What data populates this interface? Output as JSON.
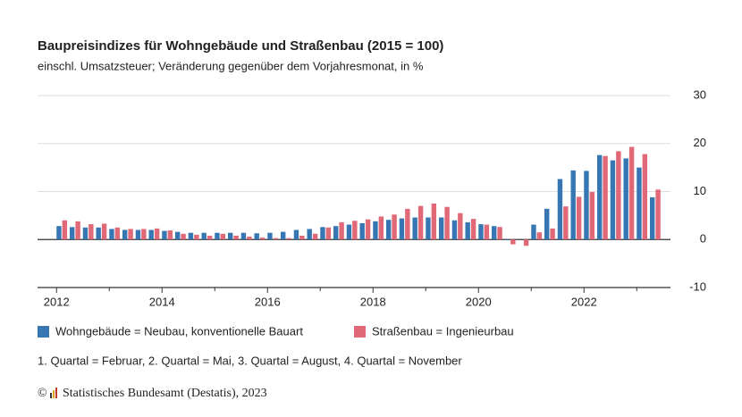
{
  "chart_data": {
    "type": "bar",
    "title": "Baupreisindizes für Wohngebäude und Straßenbau (2015 = 100)",
    "subtitle": "einschl. Umsatzsteuer; Veränderung gegenüber dem Vorjahresmonat, in %",
    "note": "1. Quartal = Februar, 2. Quartal = Mai, 3. Quartal = August, 4. Quartal = November",
    "copyright": "©",
    "source": "Statistisches Bundesamt (Destatis), 2023",
    "x": [
      2012.1,
      2012.35,
      2012.6,
      2012.85,
      2013.1,
      2013.35,
      2013.6,
      2013.85,
      2014.1,
      2014.35,
      2014.6,
      2014.85,
      2015.1,
      2015.35,
      2015.6,
      2015.85,
      2016.1,
      2016.35,
      2016.6,
      2016.85,
      2017.1,
      2017.35,
      2017.6,
      2017.85,
      2018.1,
      2018.35,
      2018.6,
      2018.85,
      2019.1,
      2019.35,
      2019.6,
      2019.85,
      2020.1,
      2020.35,
      2020.6,
      2020.85,
      2021.1,
      2021.35,
      2021.6,
      2021.85,
      2022.1,
      2022.35,
      2022.6,
      2022.85,
      2023.1,
      2023.35
    ],
    "series": [
      {
        "name": "Wohngebäude = Neubau, konventionelle Bauart",
        "color": "#3677b3",
        "values": [
          2.8,
          2.6,
          2.5,
          2.5,
          2.2,
          2.0,
          2.0,
          2.0,
          1.8,
          1.6,
          1.4,
          1.4,
          1.4,
          1.4,
          1.4,
          1.3,
          1.4,
          1.6,
          2.0,
          2.2,
          2.6,
          2.8,
          3.1,
          3.4,
          3.8,
          4.1,
          4.4,
          4.6,
          4.6,
          4.6,
          4.0,
          3.6,
          3.2,
          2.8,
          -0.1,
          0.0,
          3.1,
          6.4,
          12.6,
          14.4,
          14.3,
          17.6,
          16.5,
          16.9,
          15.0,
          8.8
        ]
      },
      {
        "name": "Straßenbau = Ingenieurbau",
        "color": "#e06877",
        "values": [
          4.0,
          3.8,
          3.2,
          3.3,
          2.5,
          2.2,
          2.2,
          2.3,
          1.9,
          1.2,
          1.0,
          0.8,
          1.2,
          0.8,
          0.6,
          0.4,
          0.3,
          0.3,
          0.8,
          1.2,
          2.5,
          3.6,
          3.9,
          4.2,
          4.8,
          5.2,
          6.4,
          7.0,
          7.5,
          6.8,
          5.5,
          4.3,
          3.1,
          2.6,
          -1.0,
          -1.3,
          1.5,
          2.3,
          6.9,
          8.9,
          9.9,
          17.4,
          18.4,
          19.3,
          17.8,
          10.4
        ]
      }
    ],
    "xlim": [
      2011.64,
      2023.64
    ],
    "xticks": [
      2012,
      2014,
      2016,
      2018,
      2020,
      2022
    ],
    "xminorticks": [
      2013,
      2015,
      2017,
      2019,
      2021,
      2023
    ],
    "ylim": [
      -10,
      30
    ],
    "yticks": [
      -10,
      0,
      10,
      20,
      30
    ],
    "grid": true
  }
}
